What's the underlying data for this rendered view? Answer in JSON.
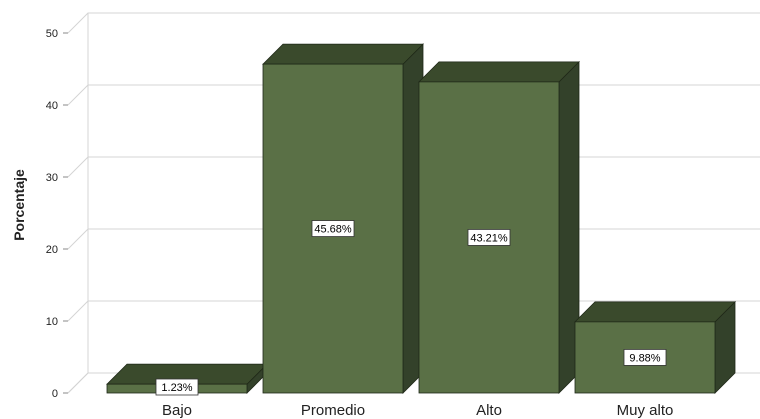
{
  "chart_data": {
    "type": "bar",
    "categories": [
      "Bajo",
      "Promedio",
      "Alto",
      "Muy alto"
    ],
    "values": [
      1.23,
      45.68,
      43.21,
      9.88
    ],
    "data_labels": [
      "1.23%",
      "45.68%",
      "43.21%",
      "9.88%"
    ],
    "ylabel": "Porcentaje",
    "ylim": [
      0,
      50
    ],
    "yticks": [
      "0",
      "10",
      "20",
      "30",
      "40",
      "50"
    ],
    "grid": true,
    "style": "3d",
    "colors": {
      "bar_front": "#5a7046",
      "bar_top": "#3a4a2c",
      "bar_side": "#33412a",
      "grid": "#d4d4d4"
    }
  }
}
